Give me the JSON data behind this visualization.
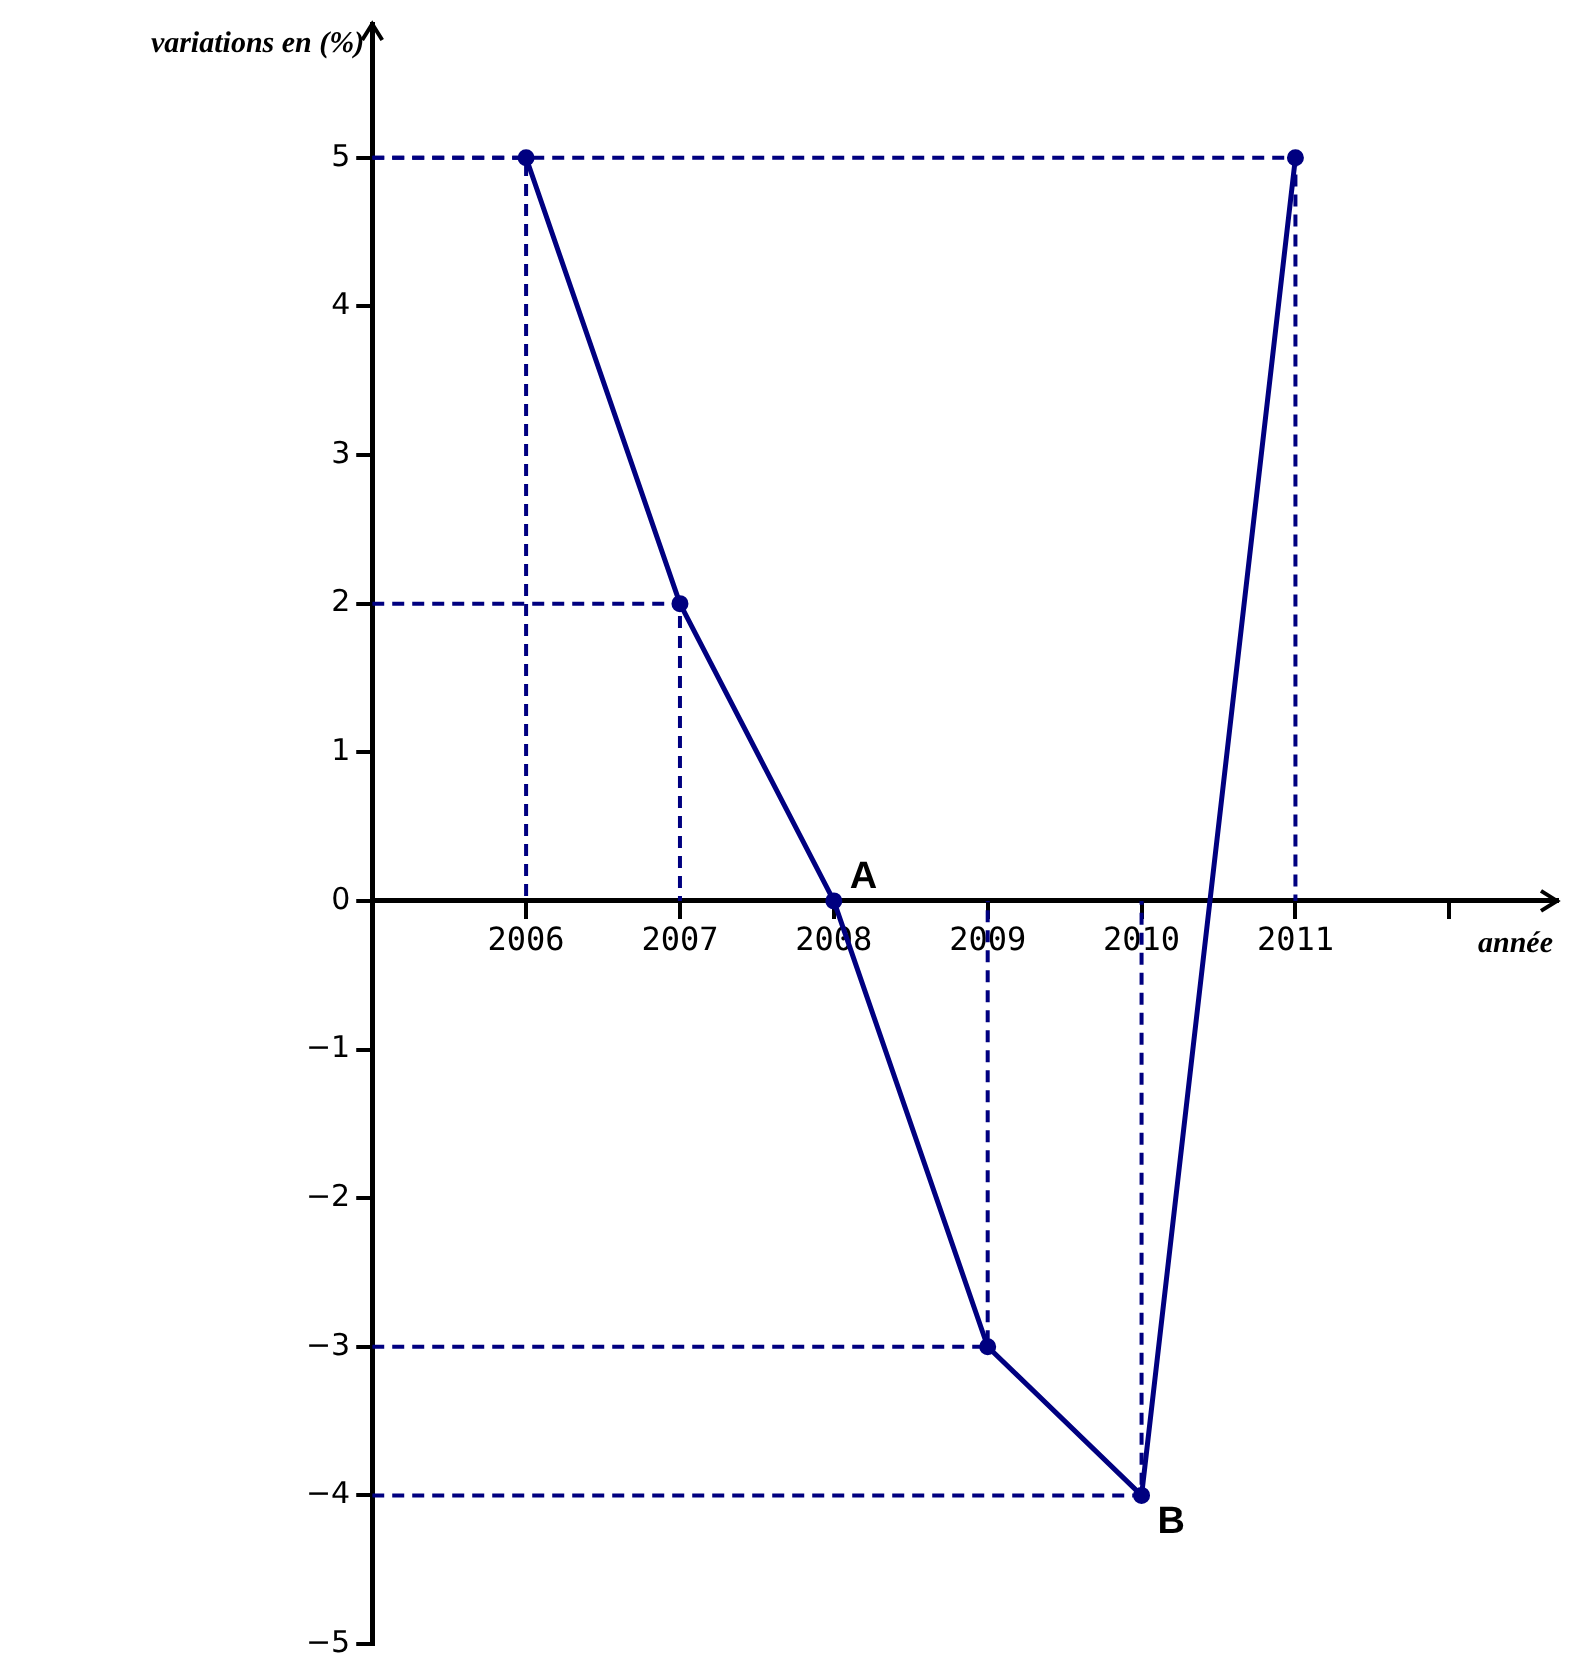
{
  "chart_data": {
    "type": "line",
    "xlabel": "année",
    "ylabel": "variations en (%)",
    "x": [
      2006,
      2007,
      2008,
      2009,
      2010,
      2011
    ],
    "series": [
      {
        "color": "#000080",
        "values": [
          5,
          2,
          0,
          -3,
          -4,
          5
        ]
      },
      {
        "type": "line",
        "color": "#000080",
        "line_style": "dashed",
        "marker": "none",
        "x": [
          2005,
          2006,
          2006
        ],
        "values": [
          5,
          5,
          0
        ]
      },
      {
        "type": "line",
        "color": "#000080",
        "line_style": "dashed",
        "marker": "none",
        "x": [
          2005,
          2007,
          2007
        ],
        "values": [
          2,
          2,
          0
        ]
      },
      {
        "type": "line",
        "color": "#000080",
        "line_style": "dashed",
        "marker": "none",
        "x": [
          2005,
          2009,
          2009
        ],
        "values": [
          -3,
          -3,
          0
        ]
      },
      {
        "type": "line",
        "color": "#000080",
        "line_style": "dashed",
        "marker": "none",
        "x": [
          2005,
          2010,
          2010
        ],
        "values": [
          -4,
          -4,
          0
        ]
      },
      {
        "type": "line",
        "color": "#000080",
        "line_style": "dashed",
        "marker": "none",
        "x": [
          2005,
          2011,
          2011
        ],
        "values": [
          5,
          5,
          0
        ]
      }
    ],
    "xlim": [
      2005,
      2012.7
    ],
    "xticks": [
      2006,
      2007,
      2008,
      2009,
      2010,
      2011,
      {
        "value": 2012,
        "label": null
      }
    ],
    "ylim": [
      -5,
      5.9
    ],
    "yticks": [
      {
        "value": -5,
        "label": "−5"
      },
      {
        "value": -4,
        "label": "−4"
      },
      {
        "value": -3,
        "label": "−3"
      },
      {
        "value": -2,
        "label": "−2"
      },
      {
        "value": -1,
        "label": "−1"
      },
      0,
      1,
      2,
      3,
      4,
      5
    ],
    "annotations": [
      {
        "text": "A",
        "x": 2008,
        "y": 0
      },
      {
        "text": "B",
        "x": 2010,
        "y": -4
      }
    ],
    "grid": false,
    "legend": false,
    "marker": "circle",
    "line_style": "solid"
  }
}
